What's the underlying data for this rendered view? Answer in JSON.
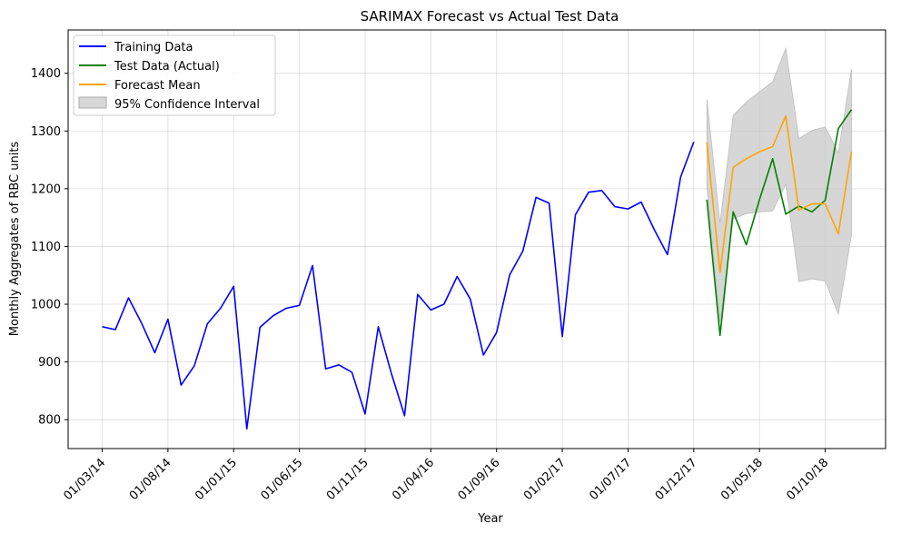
{
  "chart_data": {
    "type": "line",
    "title": "SARIMAX Forecast vs Actual Test Data",
    "xlabel": "Year",
    "ylabel": "Monthly Aggregates of RBC units",
    "x_tick_labels": [
      "01/03/14",
      "01/08/14",
      "01/01/15",
      "01/06/15",
      "01/11/15",
      "01/04/16",
      "01/09/16",
      "01/02/17",
      "01/07/17",
      "01/12/17",
      "01/05/18",
      "01/10/18"
    ],
    "ylim": [
      750,
      1475
    ],
    "y_ticks": [
      800,
      900,
      1000,
      1100,
      1200,
      1300,
      1400
    ],
    "grid": true,
    "legend_position": "top-left",
    "colors": {
      "training": "#0000ff",
      "test": "#008000",
      "forecast": "#ffa500",
      "interval": "#c8c8c8"
    },
    "series": [
      {
        "name": "Training Data",
        "x": [
          "2014-03",
          "2014-04",
          "2014-05",
          "2014-06",
          "2014-07",
          "2014-08",
          "2014-09",
          "2014-10",
          "2014-11",
          "2014-12",
          "2015-01",
          "2015-02",
          "2015-03",
          "2015-04",
          "2015-05",
          "2015-06",
          "2015-07",
          "2015-08",
          "2015-09",
          "2015-10",
          "2015-11",
          "2015-12",
          "2016-01",
          "2016-02",
          "2016-03",
          "2016-04",
          "2016-05",
          "2016-06",
          "2016-07",
          "2016-08",
          "2016-09",
          "2016-10",
          "2016-11",
          "2016-12",
          "2017-01",
          "2017-02",
          "2017-03",
          "2017-04",
          "2017-05",
          "2017-06",
          "2017-07",
          "2017-08",
          "2017-09",
          "2017-10",
          "2017-11",
          "2017-12"
        ],
        "values": [
          961,
          956,
          1011,
          967,
          916,
          974,
          860,
          893,
          966,
          993,
          1031,
          784,
          960,
          980,
          993,
          998,
          1067,
          888,
          895,
          882,
          810,
          961,
          880,
          807,
          1017,
          990,
          1000,
          1048,
          1009,
          912,
          951,
          1051,
          1092,
          1185,
          1175,
          944,
          1155,
          1194,
          1197,
          1169,
          1165,
          1177,
          1129,
          1086,
          1220,
          1281
        ]
      },
      {
        "name": "Test Data (Actual)",
        "x": [
          "2018-01",
          "2018-02",
          "2018-03",
          "2018-04",
          "2018-05",
          "2018-06",
          "2018-07",
          "2018-08",
          "2018-09",
          "2018-10",
          "2018-11",
          "2018-12"
        ],
        "values": [
          1181,
          946,
          1160,
          1103,
          1181,
          1252,
          1156,
          1170,
          1160,
          1180,
          1304,
          1337
        ]
      },
      {
        "name": "Forecast Mean",
        "x": [
          "2018-01",
          "2018-02",
          "2018-03",
          "2018-04",
          "2018-05",
          "2018-06",
          "2018-07",
          "2018-08",
          "2018-09",
          "2018-10",
          "2018-11",
          "2018-12"
        ],
        "values": [
          1280,
          1055,
          1237,
          1252,
          1264,
          1273,
          1326,
          1163,
          1174,
          1174,
          1122,
          1264
        ]
      },
      {
        "name": "95% Confidence Interval",
        "x": [
          "2018-01",
          "2018-02",
          "2018-03",
          "2018-04",
          "2018-05",
          "2018-06",
          "2018-07",
          "2018-08",
          "2018-09",
          "2018-10",
          "2018-11",
          "2018-12"
        ],
        "lower": [
          1203,
          969,
          1148,
          1157,
          1160,
          1161,
          1208,
          1039,
          1044,
          1040,
          983,
          1120
        ],
        "upper": [
          1355,
          1140,
          1327,
          1350,
          1368,
          1385,
          1443,
          1287,
          1301,
          1307,
          1262,
          1407
        ]
      }
    ]
  }
}
